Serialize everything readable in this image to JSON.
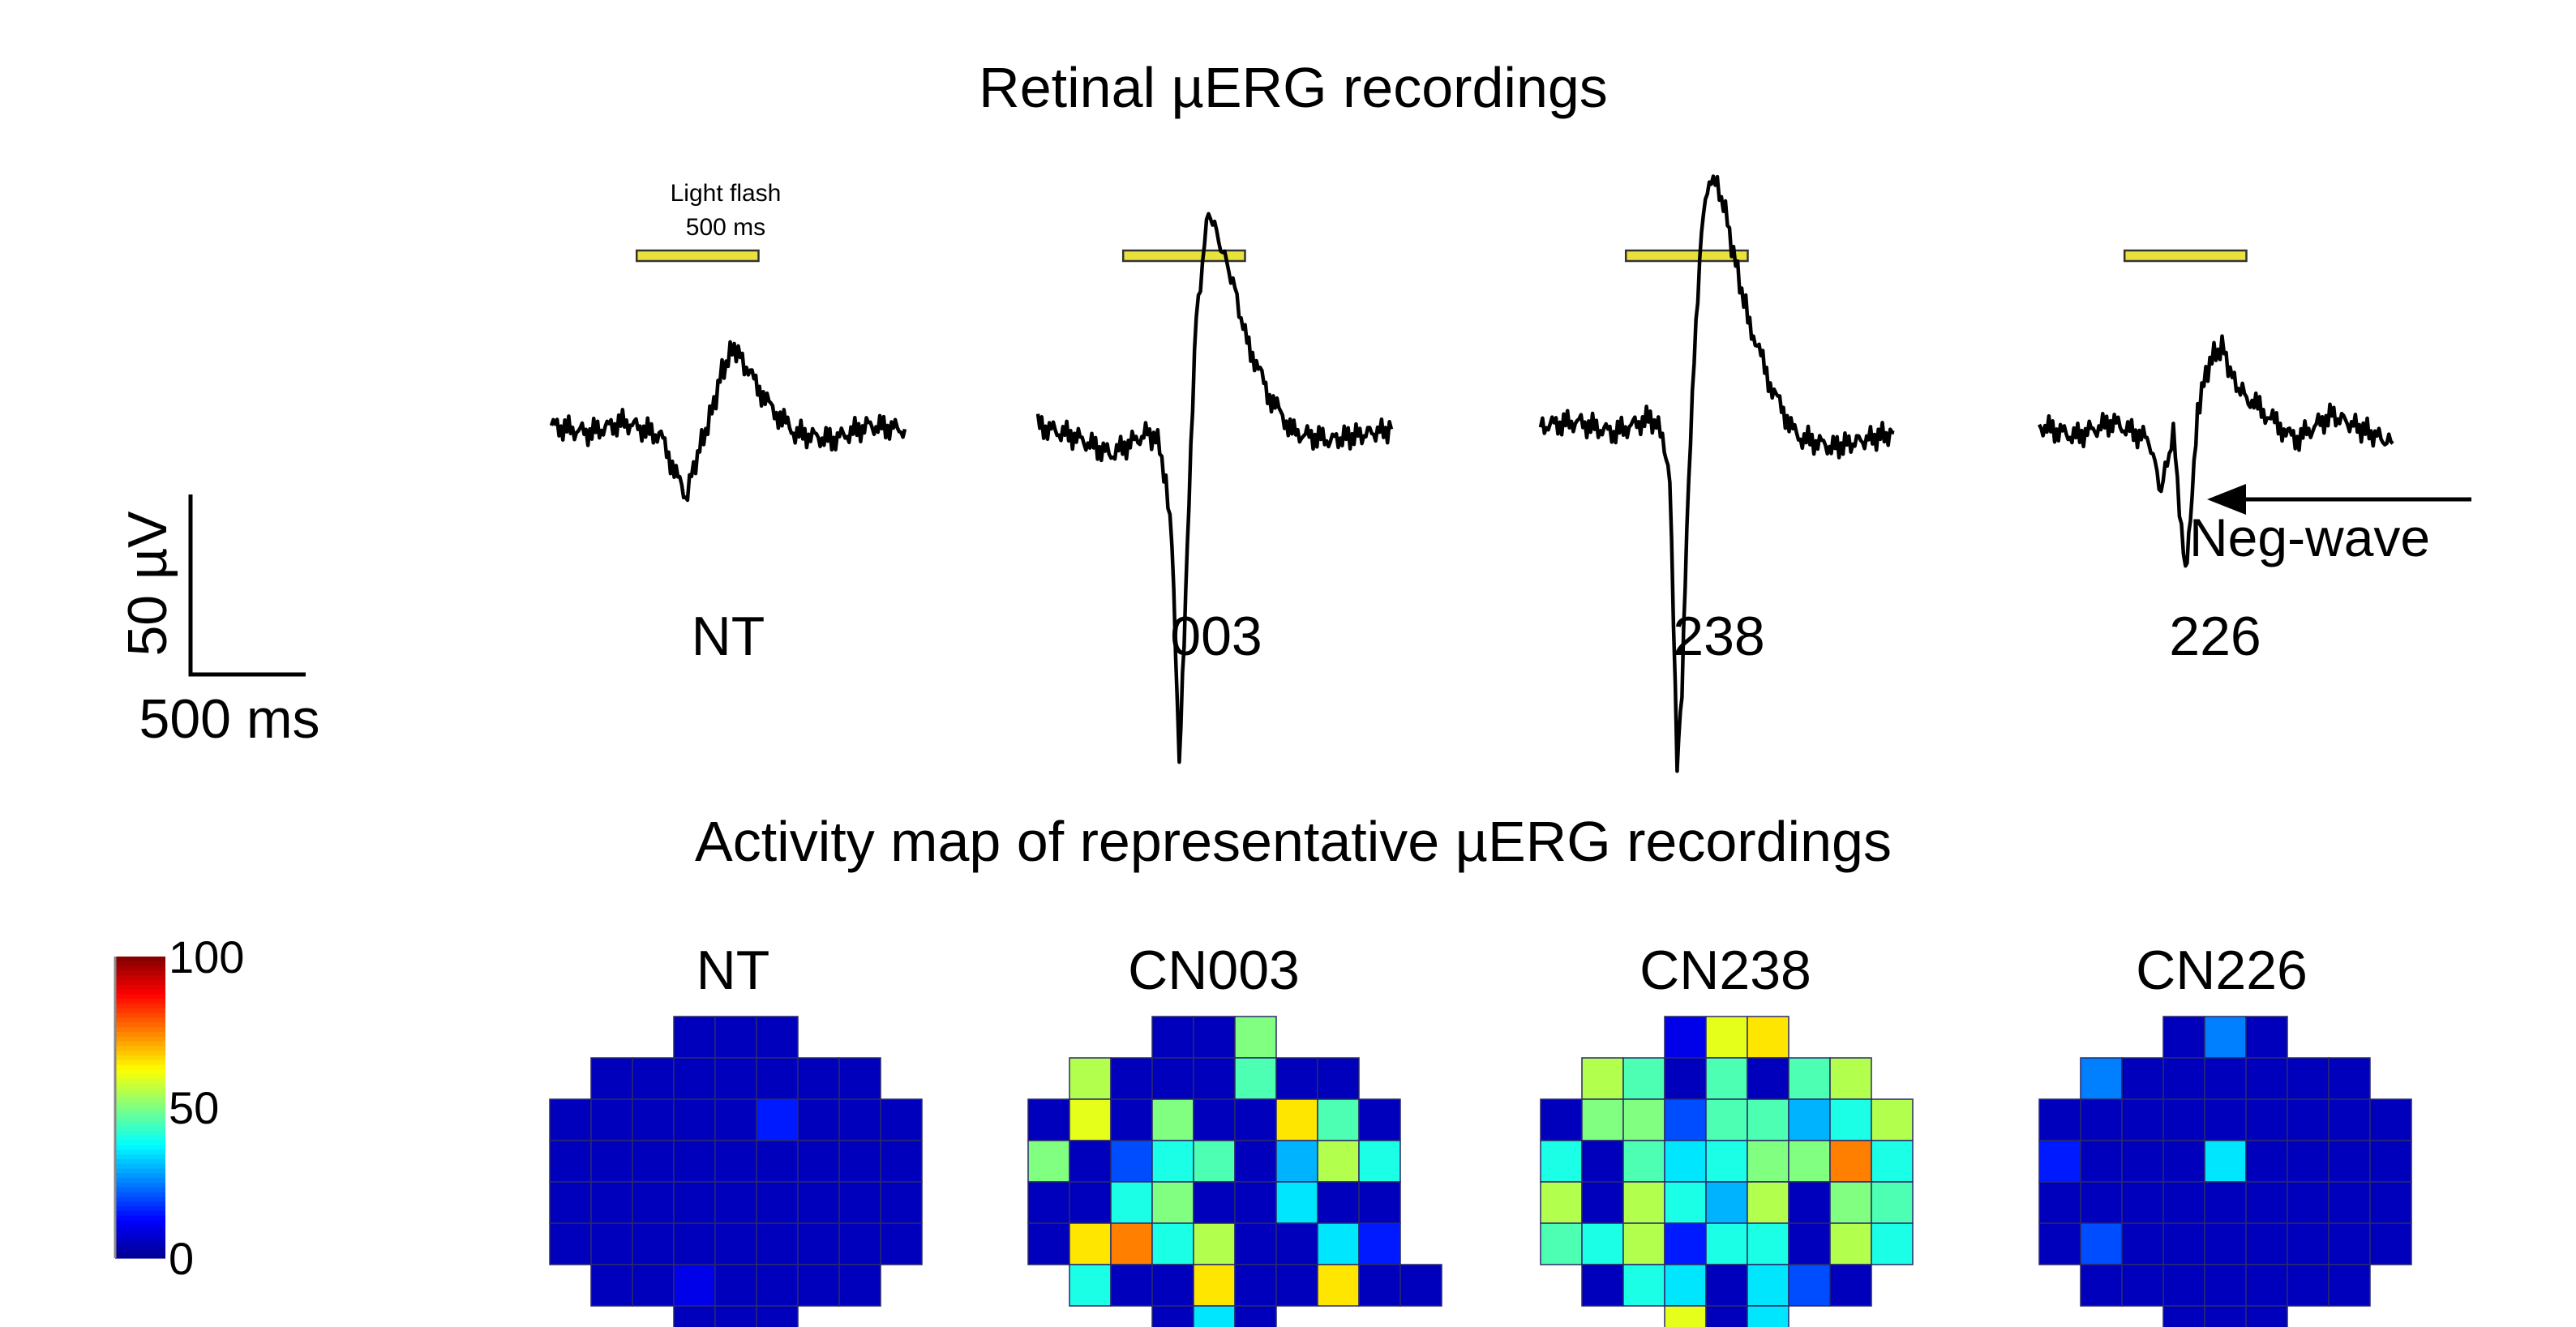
{
  "top_title": "Retinal µERG recordings",
  "bottom_title": "Activity map of representative µERG recordings",
  "light_flash_label": [
    "Light flash",
    "500 ms"
  ],
  "scale_bar": {
    "vertical_label": "50 µV",
    "horizontal_label": "500 ms"
  },
  "annotation": "Neg-wave",
  "colors": {
    "trace": "#000000",
    "flash_bar": "#e8e23a",
    "grid_line": "#2a2a6a"
  },
  "colormap": [
    "#00008f",
    "#0000ff",
    "#0080ff",
    "#00ffff",
    "#80ff80",
    "#ffff00",
    "#ff8000",
    "#ff0000",
    "#800000"
  ],
  "chart_data": [
    {
      "type": "line",
      "title": "Retinal µERG recordings",
      "units": {
        "x": "ms",
        "y": "µV"
      },
      "scale_bar": {
        "x_ms": 500,
        "y_uV": 50
      },
      "stimulus": {
        "label": "Light flash",
        "duration_ms": 500
      },
      "series": [
        {
          "name": "NT",
          "x": [
            0,
            150,
            300,
            450,
            550,
            600,
            650,
            700,
            750,
            800,
            900,
            1000,
            1150,
            1300,
            1450
          ],
          "y": [
            0,
            -2,
            1,
            -3,
            -20,
            -8,
            2,
            15,
            22,
            16,
            5,
            -2,
            -4,
            0,
            -1
          ]
        },
        {
          "name": "003",
          "x": [
            0,
            150,
            300,
            450,
            500,
            550,
            580,
            600,
            620,
            650,
            700,
            750,
            800,
            850,
            950,
            1050,
            1200,
            1450
          ],
          "y": [
            0,
            -3,
            -8,
            -2,
            -5,
            -30,
            -95,
            -60,
            -20,
            30,
            60,
            50,
            40,
            25,
            8,
            -2,
            -4,
            -1
          ]
        },
        {
          "name": "238",
          "x": [
            0,
            150,
            300,
            450,
            500,
            530,
            560,
            580,
            600,
            630,
            660,
            700,
            750,
            800,
            850,
            950,
            1050,
            1200,
            1450
          ],
          "y": [
            0,
            1,
            -2,
            2,
            -2,
            -15,
            -95,
            -75,
            -30,
            20,
            55,
            70,
            62,
            45,
            30,
            10,
            -3,
            -6,
            -2
          ]
        },
        {
          "name": "226",
          "x": [
            0,
            150,
            300,
            450,
            500,
            550,
            600,
            620,
            650,
            700,
            750,
            800,
            850,
            950,
            1050,
            1200,
            1450
          ],
          "y": [
            0,
            -3,
            1,
            -4,
            -18,
            -2,
            -42,
            -28,
            5,
            18,
            22,
            12,
            8,
            2,
            -4,
            3,
            -5
          ]
        }
      ]
    },
    {
      "type": "heatmap",
      "title": "Activity map of representative µERG recordings",
      "scale": {
        "min": 0,
        "max": 100,
        "ticks": [
          0,
          50,
          100
        ]
      },
      "row_layout": [
        {
          "start": 3,
          "len": 3
        },
        {
          "start": 1,
          "len": 7
        },
        {
          "start": 0,
          "len": 9
        },
        {
          "start": 0,
          "len": 9
        },
        {
          "start": 0,
          "len": 9
        },
        {
          "start": 0,
          "len": 9
        },
        {
          "start": 1,
          "len": 7
        },
        {
          "start": 3,
          "len": 3
        }
      ],
      "maps": [
        {
          "name": "NT",
          "values": [
            [
              5,
              5,
              5
            ],
            [
              5,
              5,
              5,
              5,
              5,
              5,
              5
            ],
            [
              5,
              5,
              5,
              5,
              5,
              15,
              5,
              5,
              5
            ],
            [
              5,
              5,
              5,
              5,
              5,
              5,
              5,
              5,
              5
            ],
            [
              5,
              5,
              5,
              5,
              5,
              5,
              5,
              5,
              5
            ],
            [
              5,
              5,
              5,
              5,
              5,
              5,
              5,
              5,
              5
            ],
            [
              5,
              5,
              10,
              5,
              5,
              5,
              5
            ],
            [
              5,
              5,
              5
            ]
          ]
        },
        {
          "name": "CN003",
          "values": [
            [
              5,
              5,
              50
            ],
            [
              55,
              5,
              5,
              5,
              45,
              5,
              5
            ],
            [
              5,
              60,
              5,
              50,
              5,
              5,
              65,
              45,
              5
            ],
            [
              50,
              5,
              20,
              40,
              45,
              5,
              30,
              55,
              40
            ],
            [
              5,
              5,
              40,
              50,
              5,
              5,
              35,
              5,
              5
            ],
            [
              5,
              65,
              75,
              40,
              55,
              5,
              5,
              35,
              15
            ],
            [
              40,
              5,
              5,
              65,
              5,
              5,
              65,
              5,
              5
            ],
            [
              5,
              35,
              5
            ]
          ]
        },
        {
          "name": "CN238",
          "values": [
            [
              10,
              60,
              65
            ],
            [
              55,
              45,
              5,
              45,
              5,
              45,
              55
            ],
            [
              5,
              50,
              50,
              20,
              45,
              45,
              30,
              40,
              55
            ],
            [
              40,
              5,
              45,
              35,
              40,
              50,
              50,
              75,
              40
            ],
            [
              55,
              5,
              55,
              40,
              30,
              55,
              5,
              50,
              45
            ],
            [
              45,
              40,
              55,
              15,
              40,
              40,
              5,
              55,
              40
            ],
            [
              5,
              40,
              35,
              5,
              35,
              20,
              5
            ],
            [
              60,
              5,
              35
            ]
          ]
        },
        {
          "name": "CN226",
          "values": [
            [
              5,
              25,
              5
            ],
            [
              25,
              5,
              5,
              5,
              5,
              5,
              5
            ],
            [
              5,
              5,
              5,
              5,
              5,
              5,
              5,
              5,
              5
            ],
            [
              15,
              5,
              5,
              5,
              35,
              5,
              5,
              5,
              5
            ],
            [
              5,
              5,
              5,
              5,
              5,
              5,
              5,
              5,
              5
            ],
            [
              5,
              20,
              5,
              5,
              5,
              5,
              5,
              5,
              5
            ],
            [
              5,
              5,
              5,
              5,
              5,
              5,
              5
            ],
            [
              5,
              5,
              5
            ]
          ]
        }
      ]
    }
  ]
}
